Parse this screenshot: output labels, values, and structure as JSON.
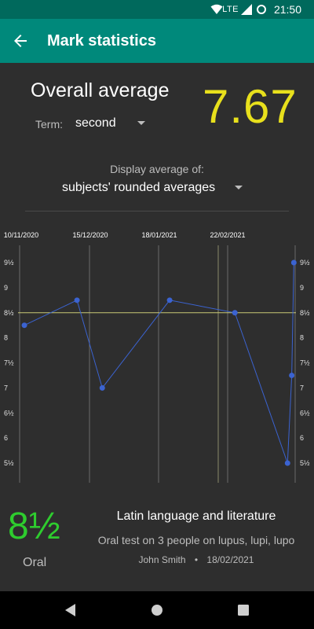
{
  "status_bar": {
    "time": "21:50",
    "network": "LTE",
    "icons": [
      "wifi-icon",
      "signal-icon",
      "battery-icon"
    ]
  },
  "app_bar": {
    "title": "Mark statistics",
    "back_icon": "back-arrow-icon"
  },
  "summary": {
    "overall_label": "Overall average",
    "overall_value": "7.67",
    "term_label": "Term:",
    "term_value": "second",
    "display_label": "Display average of:",
    "display_value": "subjects' rounded averages"
  },
  "colors": {
    "status_bar": "#00695c",
    "app_bar": "#00897b",
    "background": "#2e2e2e",
    "overall_value": "#e8e01c",
    "chart_line": "#3b63d1",
    "average_line": "#c8c875",
    "big_mark": "#2ecc2e"
  },
  "chart_data": {
    "type": "line",
    "x_tick_labels": [
      "10/11/2020",
      "15/12/2020",
      "18/01/2021",
      "22/02/2021"
    ],
    "y_tick_labels": [
      "9½",
      "9",
      "8½",
      "8",
      "7½",
      "7",
      "6½",
      "6",
      "5½"
    ],
    "y_tick_values": [
      9.5,
      9,
      8.5,
      8,
      7.5,
      7,
      6.5,
      6,
      5.5
    ],
    "ylim": [
      5.3,
      9.7
    ],
    "average_line": 8.5,
    "points": [
      {
        "x": "2020-11-10",
        "y": 8.25
      },
      {
        "x": "2020-12-05",
        "y": 8.75
      },
      {
        "x": "2020-12-17",
        "y": 7
      },
      {
        "x": "2021-01-18",
        "y": 8.75
      },
      {
        "x": "2021-02-18",
        "y": 8.5
      },
      {
        "x": "2021-03-15",
        "y": 5.5
      },
      {
        "x": "2021-03-17",
        "y": 7.25
      },
      {
        "x": "2021-03-18",
        "y": 9.5
      }
    ]
  },
  "selected_mark": {
    "value": "8½",
    "type": "Oral",
    "subject": "Latin language and literature",
    "description": "Oral test on 3 people on lupus, lupi, lupo",
    "teacher": "John Smith",
    "separator": "•",
    "date": "18/02/2021"
  },
  "nav_bar": {
    "icons": [
      "nav-back-icon",
      "nav-home-icon",
      "nav-recents-icon"
    ]
  }
}
